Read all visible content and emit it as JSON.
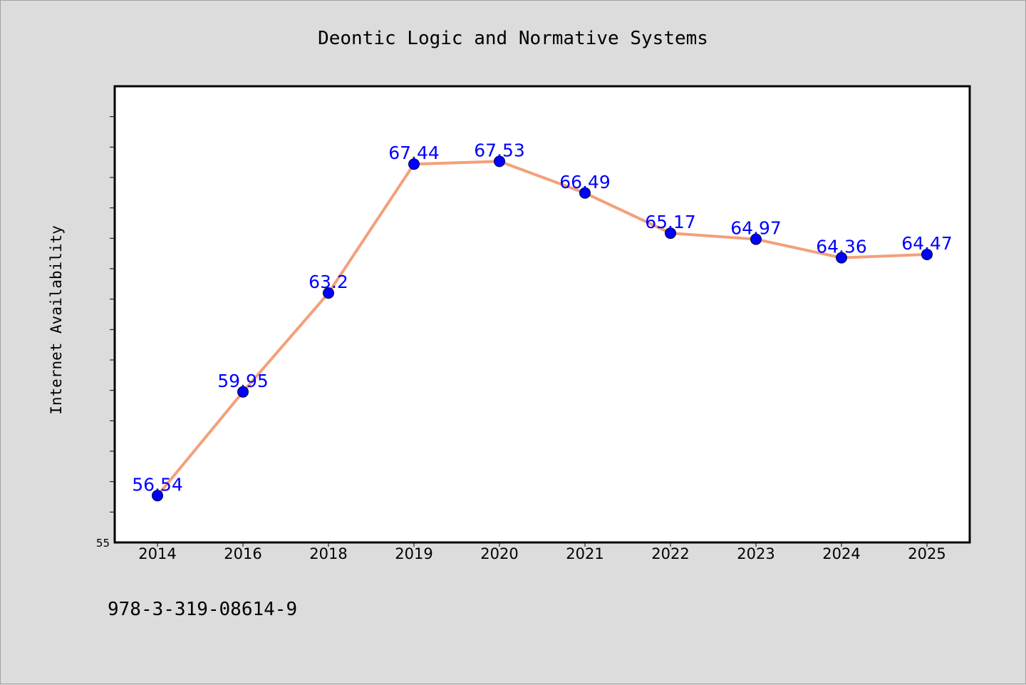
{
  "chart_data": {
    "type": "line",
    "title": "Deontic Logic and Normative Systems",
    "xlabel": "",
    "ylabel": "Internet Availability",
    "categories": [
      "2014",
      "2016",
      "2018",
      "2019",
      "2020",
      "2021",
      "2022",
      "2023",
      "2024",
      "2025"
    ],
    "values": [
      56.54,
      59.95,
      63.2,
      67.44,
      67.53,
      66.49,
      65.17,
      64.97,
      64.36,
      64.47
    ],
    "value_labels": [
      "56.54",
      "59.95",
      "63.2",
      "67.44",
      "67.53",
      "66.49",
      "65.17",
      "64.97",
      "64.36",
      "64.47"
    ],
    "ylim": [
      55,
      70
    ],
    "y_tick_labels": [
      "55"
    ],
    "grid": false,
    "legend": "none",
    "colors": {
      "line": "#f4a07a",
      "marker": "#0000ff",
      "data_label": "#0000ff",
      "plot_background": "#ffffff",
      "page_background": "#dcdcdc"
    }
  },
  "footer": {
    "isbn": "978-3-319-08614-9"
  }
}
